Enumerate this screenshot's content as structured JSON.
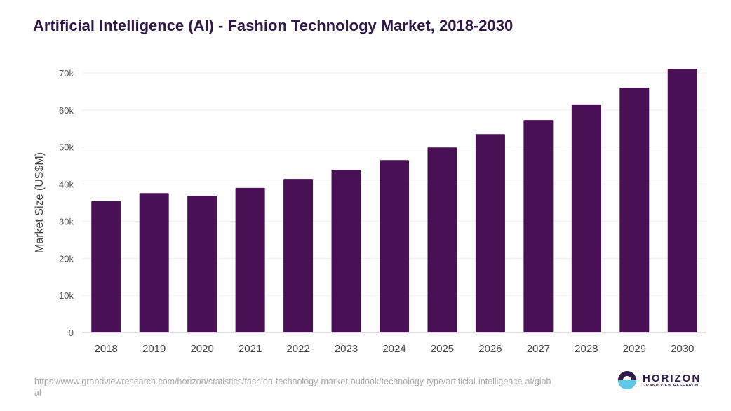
{
  "chart_data": {
    "type": "bar",
    "title": "Artificial Intelligence (AI) - Fashion Technology Market, 2018-2030",
    "xlabel": "",
    "ylabel": "Market Size (US$M)",
    "ylim": [
      0,
      70000
    ],
    "yticks": [
      0,
      10000,
      20000,
      30000,
      40000,
      50000,
      60000,
      70000
    ],
    "ytick_labels": [
      "0",
      "10k",
      "20k",
      "30k",
      "40k",
      "50k",
      "60k",
      "70k"
    ],
    "grid": true,
    "categories": [
      "2018",
      "2019",
      "2020",
      "2021",
      "2022",
      "2023",
      "2024",
      "2025",
      "2026",
      "2027",
      "2028",
      "2029",
      "2030"
    ],
    "values": [
      35400,
      37600,
      36900,
      39000,
      41400,
      43900,
      46500,
      49900,
      53500,
      57300,
      61500,
      66000,
      71100
    ],
    "bar_color": "#4a1055"
  },
  "source": "https://www.grandviewresearch.com/horizon/statistics/fashion-technology-market-outlook/technology-type/artificial-intelligence-ai/global",
  "logo": {
    "name": "HORIZON",
    "tagline": "GRAND VIEW RESEARCH"
  }
}
